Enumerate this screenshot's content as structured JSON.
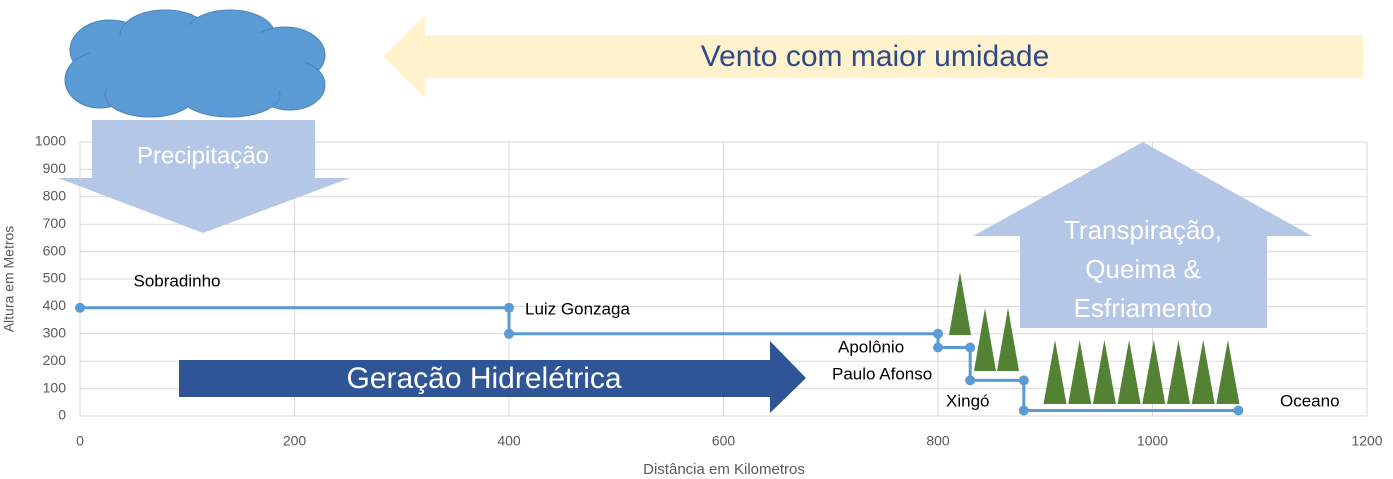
{
  "chart_data": {
    "type": "line",
    "x_label": "Distância em Kilometros",
    "y_label": "Altura em Metros",
    "x": [
      0,
      400,
      400,
      800,
      800,
      830,
      830,
      880,
      880,
      1080
    ],
    "series": [
      {
        "color": "#5b9bd5",
        "values": [
          395,
          395,
          300,
          300,
          250,
          250,
          130,
          130,
          20,
          20
        ]
      }
    ],
    "annotations": [
      "Sobradinho",
      "Luiz Gonzaga",
      "Apolônio",
      "Paulo Afonso",
      "Xingó",
      "Oceano"
    ],
    "xlim": [
      0,
      1200
    ],
    "xticks": [
      0,
      200,
      400,
      600,
      800,
      1000,
      1200
    ],
    "ylim": [
      0,
      1000
    ],
    "yticks": [
      0,
      100,
      200,
      300,
      400,
      500,
      600,
      700,
      800,
      900,
      1000
    ],
    "grid": true
  },
  "overlays": {
    "wind": "Vento com maior umidade",
    "precipitation": "Precipitação",
    "transpiration": [
      "Transpiração,",
      "Queima &",
      "Esfriamento"
    ],
    "generation": "Geração Hidrelétrica"
  }
}
